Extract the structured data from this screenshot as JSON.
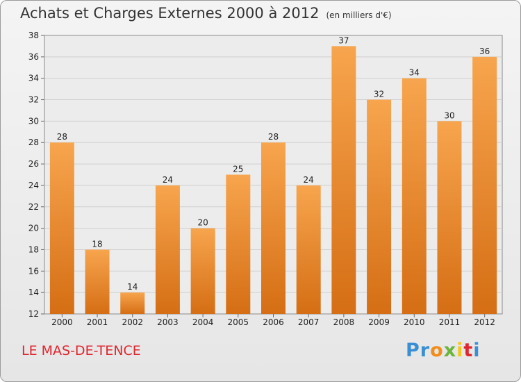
{
  "header": {
    "title": "Achats et Charges Externes 2000 à 2012",
    "subtitle": "(en milliers d'€)"
  },
  "commune": "LE MAS-DE-TENCE",
  "logo": {
    "letters": [
      "P",
      "r",
      "o",
      "x",
      "i",
      "t",
      "i"
    ],
    "colors": [
      "#3a8fd4",
      "#3a8fd4",
      "#f28c1a",
      "#6ab53a",
      "#f2c81a",
      "#e0262f",
      "#3a8fd4"
    ]
  },
  "chart_data": {
    "type": "bar",
    "title": "Achats et Charges Externes 2000 à 2012",
    "subtitle": "(en milliers d'€)",
    "categories": [
      "2000",
      "2001",
      "2002",
      "2003",
      "2004",
      "2005",
      "2006",
      "2007",
      "2008",
      "2009",
      "2010",
      "2011",
      "2012"
    ],
    "values": [
      28,
      18,
      14,
      24,
      20,
      25,
      28,
      24,
      37,
      32,
      34,
      30,
      36
    ],
    "ylim": [
      12,
      38
    ],
    "yticks": [
      12,
      14,
      16,
      18,
      20,
      22,
      24,
      26,
      28,
      30,
      32,
      34,
      36,
      38
    ],
    "grid": true,
    "xlabel": "",
    "ylabel": "",
    "bar_color_top": "#f7a54e",
    "bar_color_bottom": "#d56e14"
  }
}
